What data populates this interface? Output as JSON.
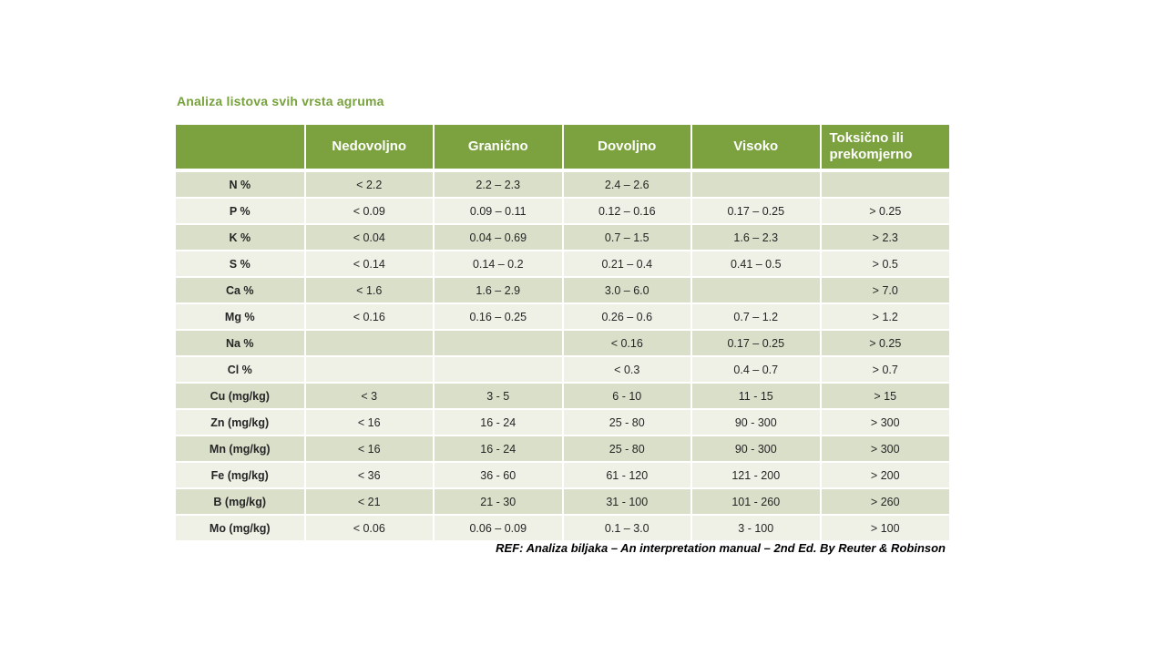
{
  "title": "Analiza listova svih vrsta agruma",
  "footer": "REF: Analiza biljaka – An interpretation manual – 2nd Ed. By Reuter & Robinson",
  "colors": {
    "header_bg": "#7BA23E",
    "title_text": "#77A13C",
    "row_band_odd": "#D9DFC9",
    "row_band_even": "#EFF1E6",
    "header_text": "#FFFFFF",
    "body_text": "#262626"
  },
  "table": {
    "columns": [
      "",
      "Nedovoljno",
      "Granično",
      "Dovoljno",
      "Visoko",
      "Toksično ili prekomjerno"
    ],
    "rows": [
      {
        "label": "N %",
        "cells": [
          "< 2.2",
          "2.2 – 2.3",
          "2.4 – 2.6",
          "",
          ""
        ]
      },
      {
        "label": "P %",
        "cells": [
          "< 0.09",
          "0.09 – 0.11",
          "0.12 – 0.16",
          "0.17 – 0.25",
          "> 0.25"
        ]
      },
      {
        "label": "K %",
        "cells": [
          "< 0.04",
          "0.04 – 0.69",
          "0.7 – 1.5",
          "1.6 – 2.3",
          "> 2.3"
        ]
      },
      {
        "label": "S %",
        "cells": [
          "< 0.14",
          "0.14 – 0.2",
          "0.21 – 0.4",
          "0.41 – 0.5",
          "> 0.5"
        ]
      },
      {
        "label": "Ca %",
        "cells": [
          "< 1.6",
          "1.6 – 2.9",
          "3.0 – 6.0",
          "",
          "> 7.0"
        ]
      },
      {
        "label": "Mg %",
        "cells": [
          "< 0.16",
          "0.16 – 0.25",
          "0.26 – 0.6",
          "0.7 – 1.2",
          "> 1.2"
        ]
      },
      {
        "label": "Na %",
        "cells": [
          "",
          "",
          "< 0.16",
          "0.17 – 0.25",
          "> 0.25"
        ]
      },
      {
        "label": "Cl %",
        "cells": [
          "",
          "",
          "< 0.3",
          "0.4 – 0.7",
          "> 0.7"
        ]
      },
      {
        "label": "Cu (mg/kg)",
        "cells": [
          "< 3",
          "3 - 5",
          "6 - 10",
          "11 - 15",
          "> 15"
        ]
      },
      {
        "label": "Zn (mg/kg)",
        "cells": [
          "< 16",
          "16 - 24",
          "25 - 80",
          "90 - 300",
          "> 300"
        ]
      },
      {
        "label": "Mn (mg/kg)",
        "cells": [
          "< 16",
          "16 - 24",
          "25 - 80",
          "90 - 300",
          "> 300"
        ]
      },
      {
        "label": "Fe (mg/kg)",
        "cells": [
          "< 36",
          "36 - 60",
          "61 - 120",
          "121 - 200",
          "> 200"
        ]
      },
      {
        "label": "B (mg/kg)",
        "cells": [
          "< 21",
          "21 - 30",
          "31 - 100",
          "101 - 260",
          "> 260"
        ]
      },
      {
        "label": "Mo (mg/kg)",
        "cells": [
          "< 0.06",
          "0.06 – 0.09",
          "0.1 – 3.0",
          "3 - 100",
          "> 100"
        ]
      }
    ]
  }
}
